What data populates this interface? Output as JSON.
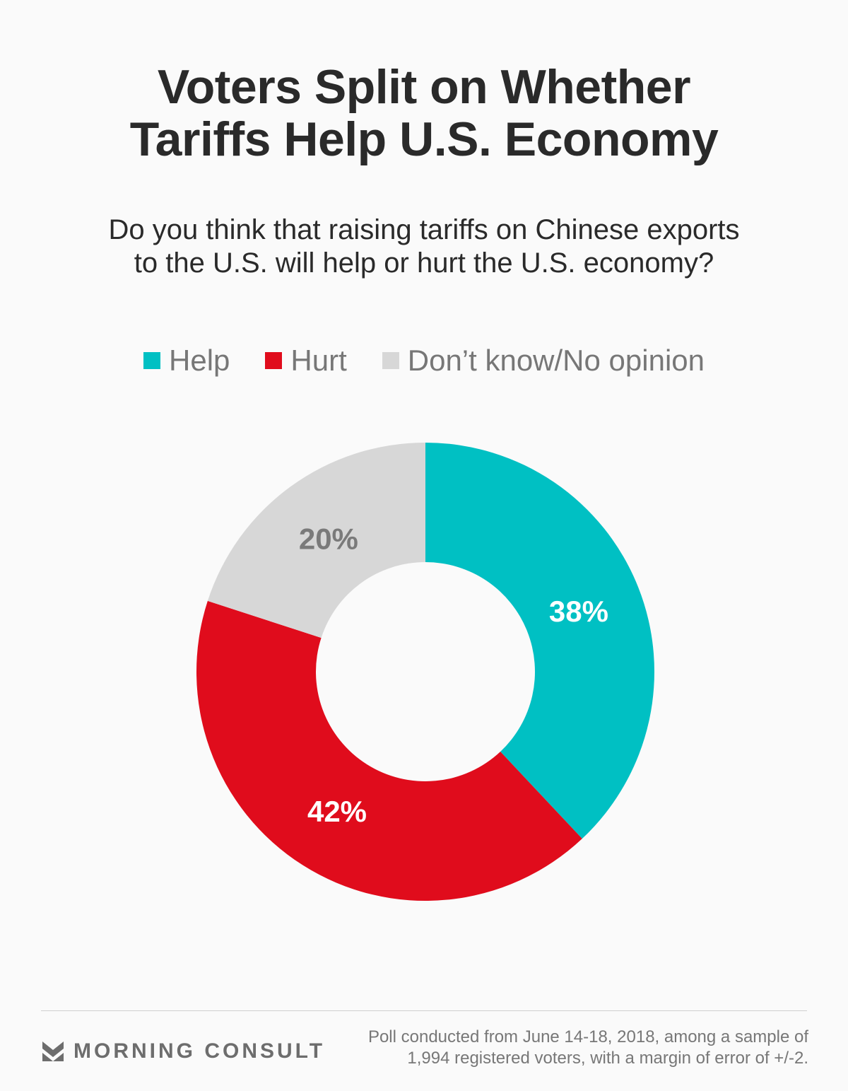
{
  "chart_data": {
    "type": "pie",
    "variant": "donut",
    "title": "Voters Split on Whether Tariffs Help U.S. Economy",
    "title_lines": [
      "Voters Split on Whether",
      "Tariffs Help U.S. Economy"
    ],
    "subtitle_lines": [
      "Do you think that raising tariffs on Chinese exports",
      "to the U.S. will help or hurt the U.S. economy?"
    ],
    "categories": [
      "Help",
      "Hurt",
      "Don’t know/No opinion"
    ],
    "values": [
      38,
      42,
      20
    ],
    "labels": [
      "38%",
      "42%",
      "20%"
    ],
    "colors": [
      "#00c0c3",
      "#e00c1c",
      "#d7d7d7"
    ],
    "label_colors": [
      "#ffffff",
      "#ffffff",
      "#7a7a7a"
    ],
    "legend_position": "top"
  },
  "footer": {
    "brand": "MORNING CONSULT",
    "note_lines": [
      "Poll conducted from June 14-18, 2018, among a sample of",
      "1,994 registered voters, with a margin of error of +/-2."
    ]
  }
}
